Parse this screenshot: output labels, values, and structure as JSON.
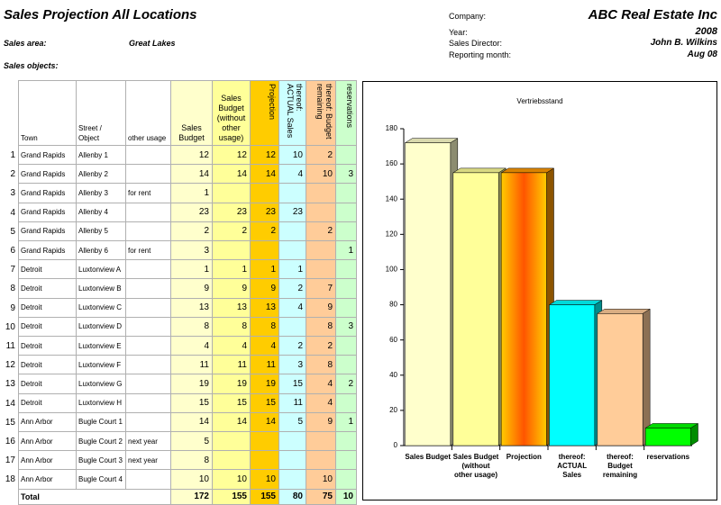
{
  "header": {
    "title": "Sales Projection All Locations",
    "fields": [
      {
        "label": "Sales area:",
        "value": "Great Lakes"
      },
      {
        "label": "Sales objects:"
      }
    ],
    "info": [
      {
        "label": "Company:",
        "value": "ABC Real Estate Inc"
      },
      {
        "label": "Year:",
        "value": "2008"
      },
      {
        "label": "Sales Director:",
        "value": "John B. Wilkins"
      },
      {
        "label": "Reporting month:",
        "value": "Aug 08"
      }
    ]
  },
  "table": {
    "columns": [
      "Town",
      "Street / Object",
      "other usage",
      "Sales Budget",
      "Sales Budget (without other usage)",
      "Projection",
      "thereof: ACTUAL Sales",
      "thereof: Budget remaining",
      "reservations"
    ],
    "rows": [
      {
        "no": 1,
        "cells": [
          "Grand Rapids",
          "Allenby 1",
          null,
          12,
          12,
          12,
          10,
          2,
          null
        ]
      },
      {
        "no": 2,
        "cells": [
          "Grand Rapids",
          "Allenby 2",
          null,
          14,
          14,
          14,
          4,
          10,
          3
        ]
      },
      {
        "no": 3,
        "cells": [
          "Grand Rapids",
          "Allenby 3",
          "for rent",
          1,
          null,
          null,
          null,
          null,
          null
        ]
      },
      {
        "no": 4,
        "cells": [
          "Grand Rapids",
          "Allenby 4",
          null,
          23,
          23,
          23,
          23,
          null,
          null
        ]
      },
      {
        "no": 5,
        "cells": [
          "Grand Rapids",
          "Allenby 5",
          null,
          2,
          2,
          2,
          null,
          2,
          null
        ]
      },
      {
        "no": 6,
        "cells": [
          "Grand Rapids",
          "Allenby 6",
          "for rent",
          3,
          null,
          null,
          null,
          null,
          1
        ]
      },
      {
        "no": 7,
        "cells": [
          "Detroit",
          "Luxtonview A",
          null,
          1,
          1,
          1,
          1,
          null,
          null
        ]
      },
      {
        "no": 8,
        "cells": [
          "Detroit",
          "Luxtonview B",
          null,
          9,
          9,
          9,
          2,
          7,
          null
        ]
      },
      {
        "no": 9,
        "cells": [
          "Detroit",
          "Luxtonview C",
          null,
          13,
          13,
          13,
          4,
          9,
          null
        ]
      },
      {
        "no": 10,
        "cells": [
          "Detroit",
          "Luxtonview D",
          null,
          8,
          8,
          8,
          null,
          8,
          3
        ]
      },
      {
        "no": 11,
        "cells": [
          "Detroit",
          "Luxtonview E",
          null,
          4,
          4,
          4,
          2,
          2,
          null
        ]
      },
      {
        "no": 12,
        "cells": [
          "Detroit",
          "Luxtonview F",
          null,
          11,
          11,
          11,
          3,
          8,
          null
        ]
      },
      {
        "no": 13,
        "cells": [
          "Detroit",
          "Luxtonview G",
          null,
          19,
          19,
          19,
          15,
          4,
          2
        ]
      },
      {
        "no": 14,
        "cells": [
          "Detroit",
          "Luxtonview H",
          null,
          15,
          15,
          15,
          11,
          4,
          null
        ]
      },
      {
        "no": 15,
        "cells": [
          "Ann Arbor",
          "Bugle Court 1",
          null,
          14,
          14,
          14,
          5,
          9,
          1
        ]
      },
      {
        "no": 16,
        "cells": [
          "Ann Arbor",
          "Bugle Court 2",
          "next year",
          5,
          null,
          null,
          null,
          null,
          null
        ]
      },
      {
        "no": 17,
        "cells": [
          "Ann Arbor",
          "Bugle Court 3",
          "next year",
          8,
          null,
          null,
          null,
          null,
          null
        ]
      },
      {
        "no": 18,
        "cells": [
          "Ann Arbor",
          "Bugle Court 4",
          null,
          10,
          10,
          10,
          null,
          10,
          null
        ]
      }
    ],
    "total": {
      "label": "Total",
      "values": [
        172,
        155,
        155,
        80,
        75,
        10
      ]
    }
  },
  "chart_data": {
    "type": "bar3d",
    "title": "Vertriebsstand",
    "categories": [
      "Sales Budget",
      "Sales Budget (without other usage)",
      "Projection",
      "thereof: ACTUAL Sales",
      "thereof: Budget remaining",
      "reservations"
    ],
    "values": [
      172,
      155,
      155,
      80,
      75,
      10
    ],
    "colors": [
      "#ffffcc",
      "#ffff99",
      "#ff9900",
      "#00ffff",
      "#ffcc99",
      "#00ff00"
    ],
    "ylim": [
      0,
      180
    ],
    "yticks": [
      0,
      20,
      40,
      60,
      80,
      100,
      120,
      140,
      160,
      180
    ],
    "grid": false
  }
}
